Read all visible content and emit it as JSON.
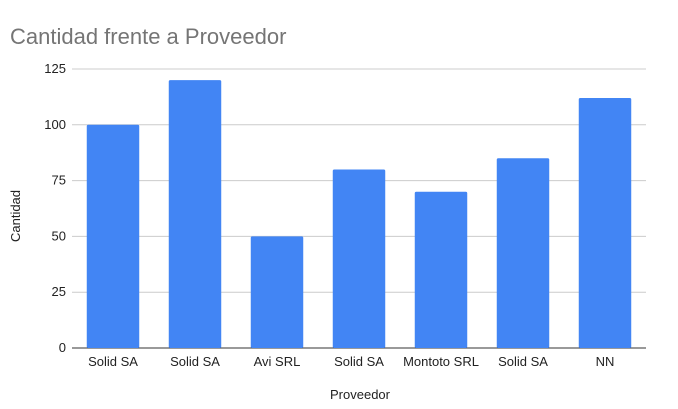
{
  "chart_data": {
    "type": "bar",
    "title": "Cantidad frente a Proveedor",
    "xlabel": "Proveedor",
    "ylabel": "Cantidad",
    "categories": [
      "Solid SA",
      "Solid SA",
      "Avi SRL",
      "Solid SA",
      "Montoto SRL",
      "Solid SA",
      "NN"
    ],
    "values": [
      100,
      120,
      50,
      80,
      70,
      85,
      112
    ],
    "ylim": [
      0,
      125
    ],
    "yticks": [
      "0",
      "25",
      "50",
      "75",
      "100",
      "125"
    ],
    "grid": true,
    "legend": "none",
    "bar_color": "#4285f4"
  }
}
